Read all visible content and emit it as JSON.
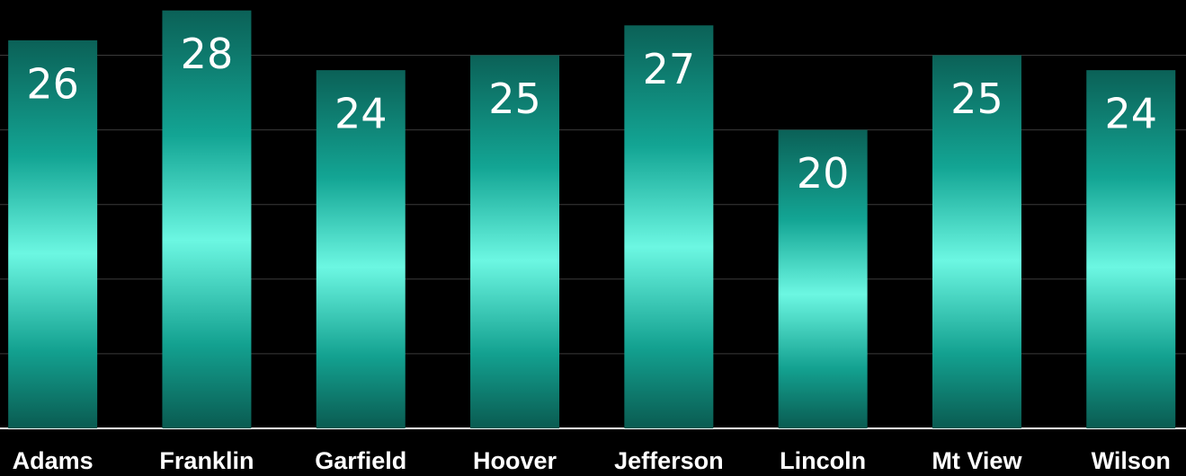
{
  "chart_data": {
    "type": "bar",
    "categories": [
      "Adams",
      "Franklin",
      "Garfield",
      "Hoover",
      "Jefferson",
      "Lincoln",
      "Mt View",
      "Wilson"
    ],
    "values": [
      26,
      28,
      24,
      25,
      27,
      20,
      25,
      24
    ],
    "color": "#17a898",
    "ylim": [
      0,
      28.7
    ],
    "yticks": [
      0,
      5,
      10,
      15,
      20,
      25
    ],
    "grid": true
  }
}
